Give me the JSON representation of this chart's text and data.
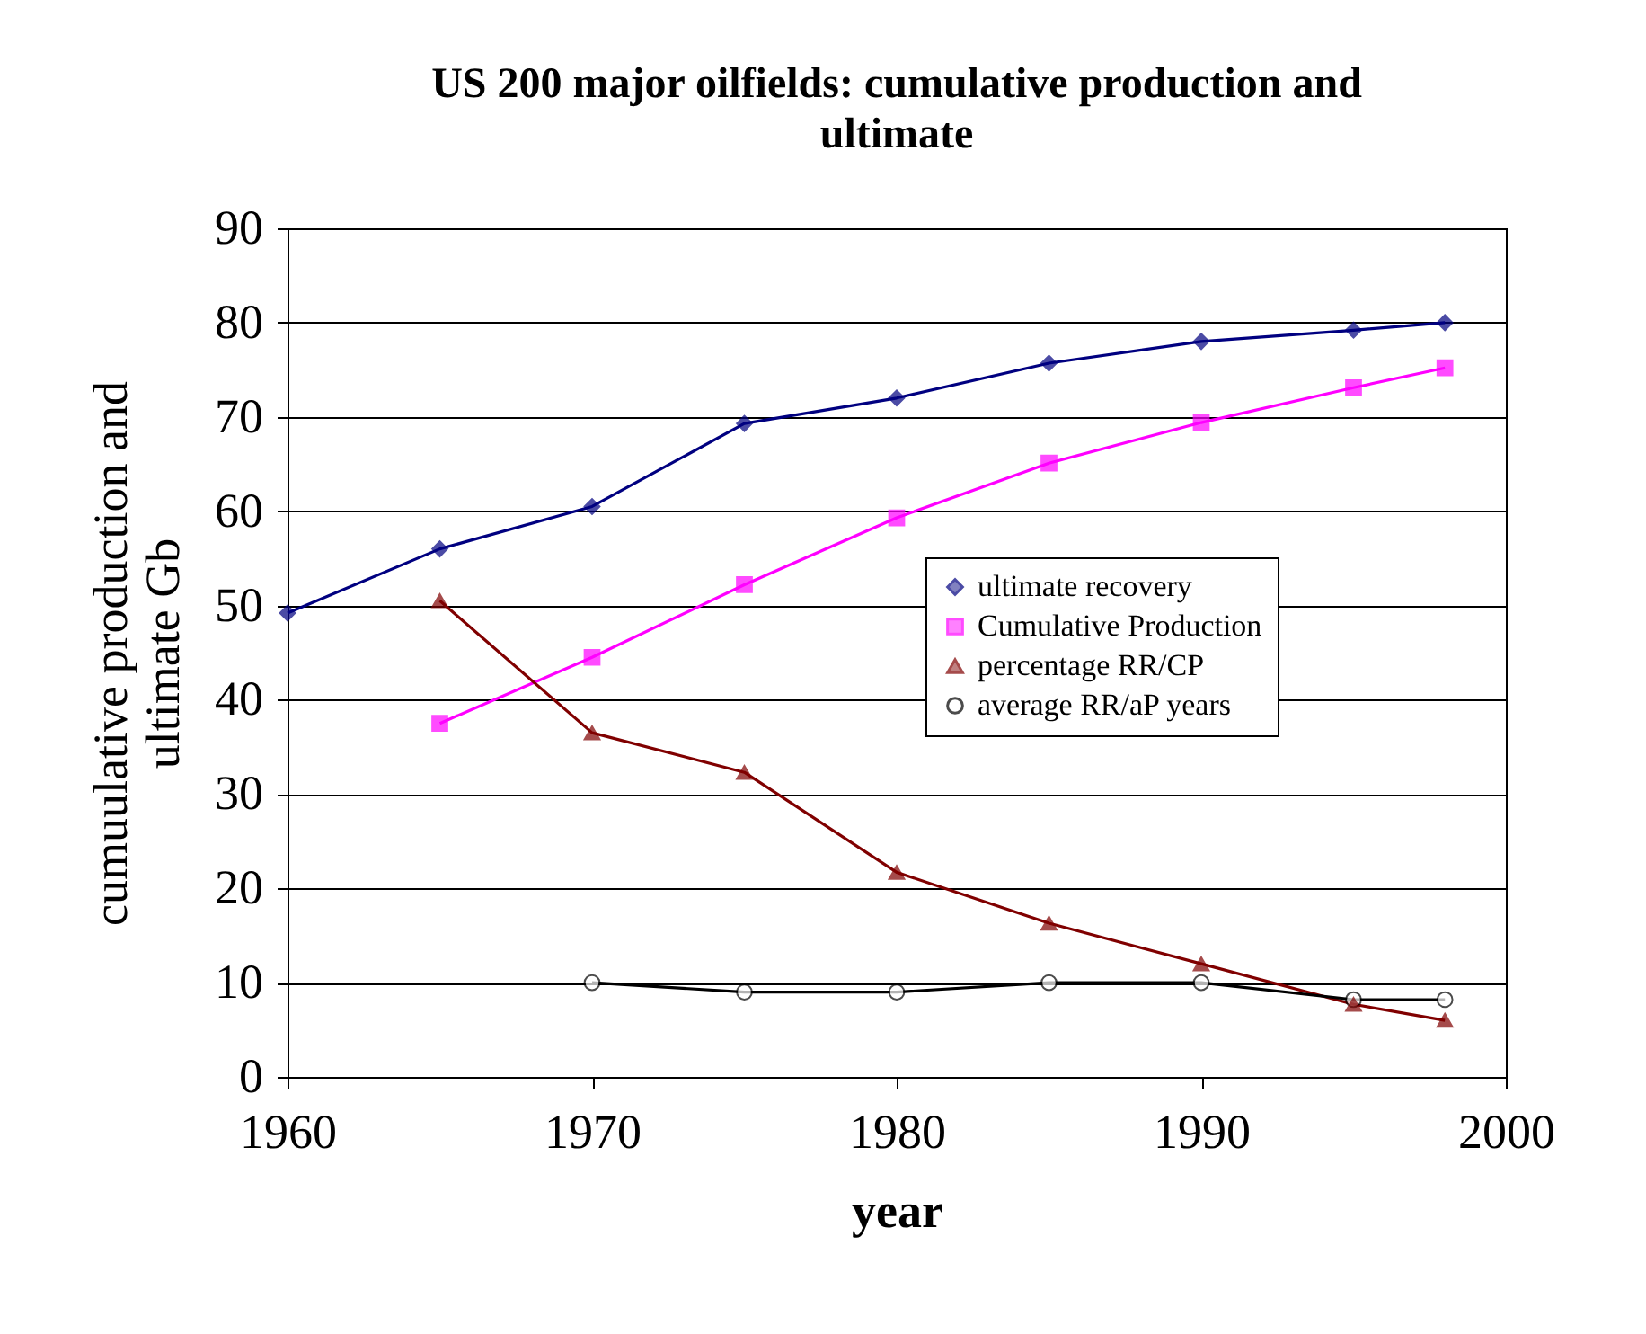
{
  "chart_data": {
    "type": "line",
    "title": "US 200 major oilfields: cumulative production and ultimate",
    "xlabel": "year",
    "ylabel": "cumuulative production and\nultimate Gb",
    "xlim": [
      1960,
      2000
    ],
    "xticks": [
      1960,
      1970,
      1980,
      1990,
      2000
    ],
    "ylim": [
      0,
      90
    ],
    "yticks": [
      0,
      10,
      20,
      30,
      40,
      50,
      60,
      70,
      80,
      90
    ],
    "grid": "y",
    "legend": "right",
    "series": [
      {
        "name": "ultimate recovery",
        "color": "#000080",
        "marker": "diamond",
        "x": [
          1960,
          1965,
          1970,
          1975,
          1980,
          1985,
          1990,
          1995,
          1998
        ],
        "values": [
          49.2,
          56,
          60.5,
          69.3,
          72,
          75.7,
          78,
          79.2,
          80
        ]
      },
      {
        "name": "Cumulative Production",
        "color": "#ff00ff",
        "marker": "square",
        "x": [
          1965,
          1970,
          1975,
          1980,
          1985,
          1990,
          1995,
          1998
        ],
        "values": [
          37.5,
          44.5,
          52.2,
          59.3,
          65.1,
          69.4,
          73.1,
          75.2
        ]
      },
      {
        "name": "percentage RR/CP",
        "color": "#800000",
        "marker": "triangle",
        "x": [
          1965,
          1970,
          1975,
          1980,
          1985,
          1990,
          1995,
          1998
        ],
        "values": [
          50.5,
          36.5,
          32.3,
          21.7,
          16.3,
          12,
          7.7,
          6
        ]
      },
      {
        "name": "average RR/aP years",
        "color": "#000000",
        "marker": "circle",
        "x": [
          1970,
          1975,
          1980,
          1985,
          1990,
          1995,
          1998
        ],
        "values": [
          10,
          9,
          9,
          10,
          10,
          8.2,
          8.2
        ]
      }
    ]
  }
}
